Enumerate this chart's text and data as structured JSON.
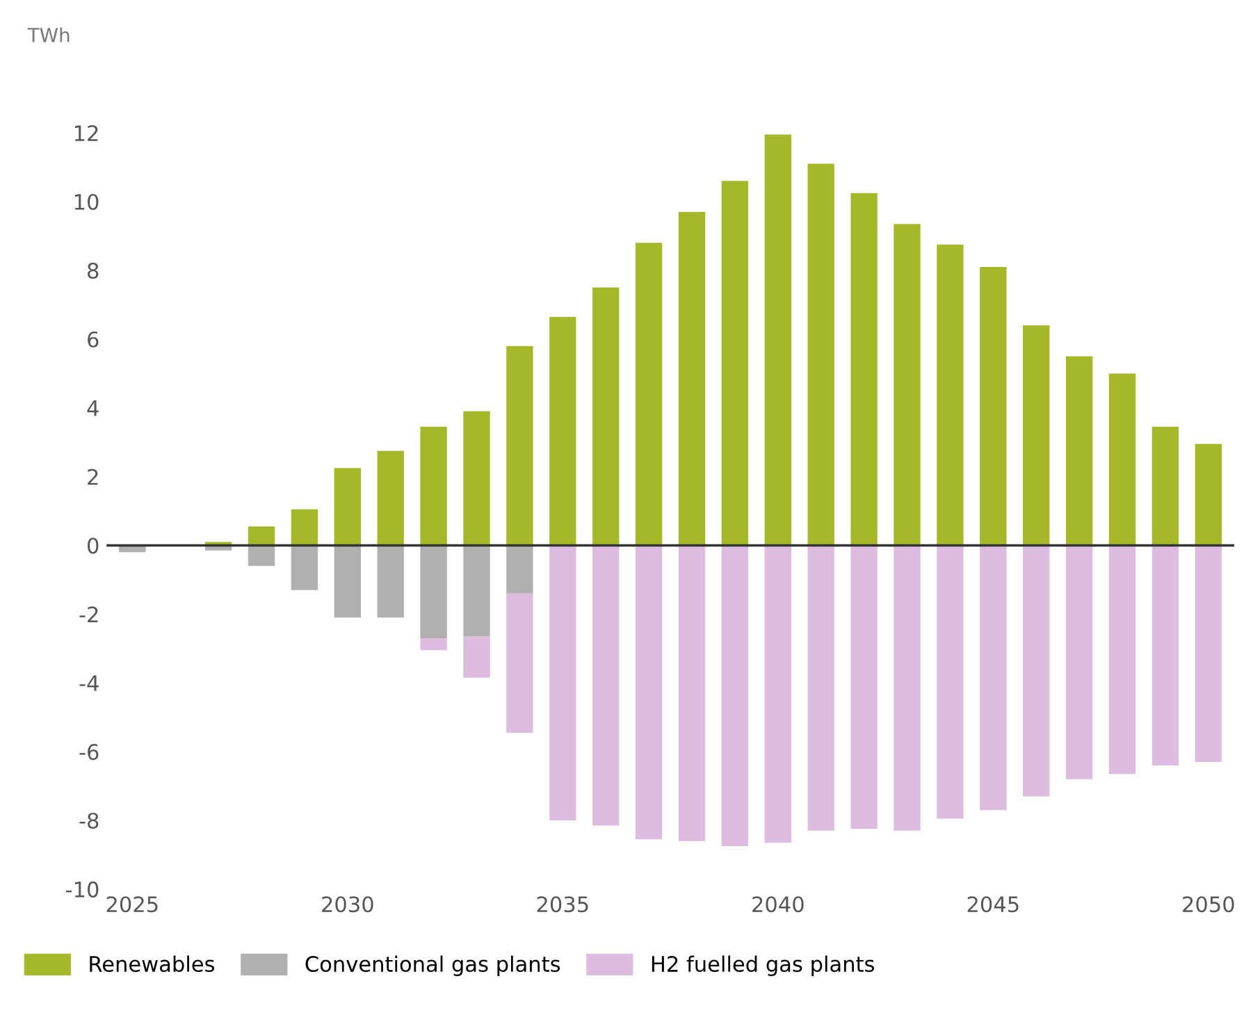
{
  "chart_data": {
    "type": "bar",
    "stacked": true,
    "ylabel": "TWh",
    "x": [
      2025,
      2026,
      2027,
      2028,
      2029,
      2030,
      2031,
      2032,
      2033,
      2034,
      2035,
      2036,
      2037,
      2038,
      2039,
      2040,
      2041,
      2042,
      2043,
      2044,
      2045,
      2046,
      2047,
      2048,
      2049,
      2050
    ],
    "series": [
      {
        "name": "Renewables",
        "color": "#a5b82a",
        "values": [
          null,
          null,
          0.1,
          0.55,
          1.05,
          2.25,
          2.75,
          3.45,
          3.9,
          5.8,
          6.65,
          7.5,
          8.8,
          9.7,
          10.6,
          11.95,
          11.1,
          10.25,
          9.35,
          8.75,
          8.1,
          6.4,
          5.5,
          5.0,
          3.45,
          2.95
        ]
      },
      {
        "name": "Conventional gas plants",
        "color": "#b0b0b0",
        "values": [
          -0.2,
          null,
          -0.15,
          -0.6,
          -1.3,
          -2.1,
          -2.1,
          -2.7,
          -2.65,
          -1.4,
          null,
          null,
          null,
          null,
          null,
          null,
          null,
          null,
          null,
          null,
          null,
          null,
          null,
          null,
          null,
          null
        ]
      },
      {
        "name": "H2 fuelled gas plants",
        "color": "#dcbde0",
        "values": [
          null,
          null,
          null,
          null,
          null,
          null,
          null,
          -0.35,
          -1.2,
          -4.05,
          -8.0,
          -8.15,
          -8.55,
          -8.6,
          -8.75,
          -8.65,
          -8.3,
          -8.25,
          -8.3,
          -7.95,
          -7.7,
          -7.3,
          -6.8,
          -6.65,
          -6.4,
          -6.3
        ]
      }
    ],
    "xlim": [
      2024.4,
      2050.6
    ],
    "xticks": [
      2025,
      2030,
      2035,
      2040,
      2045,
      2050
    ],
    "ylim": [
      -10,
      12
    ],
    "yticks": [
      -10,
      -8,
      -6,
      -4,
      -2,
      0,
      2,
      4,
      6,
      8,
      10,
      12
    ],
    "ref_lines": [
      {
        "axis": "y",
        "value": 0,
        "color": "#333333"
      }
    ],
    "grid": false,
    "legend": "bottom left"
  }
}
